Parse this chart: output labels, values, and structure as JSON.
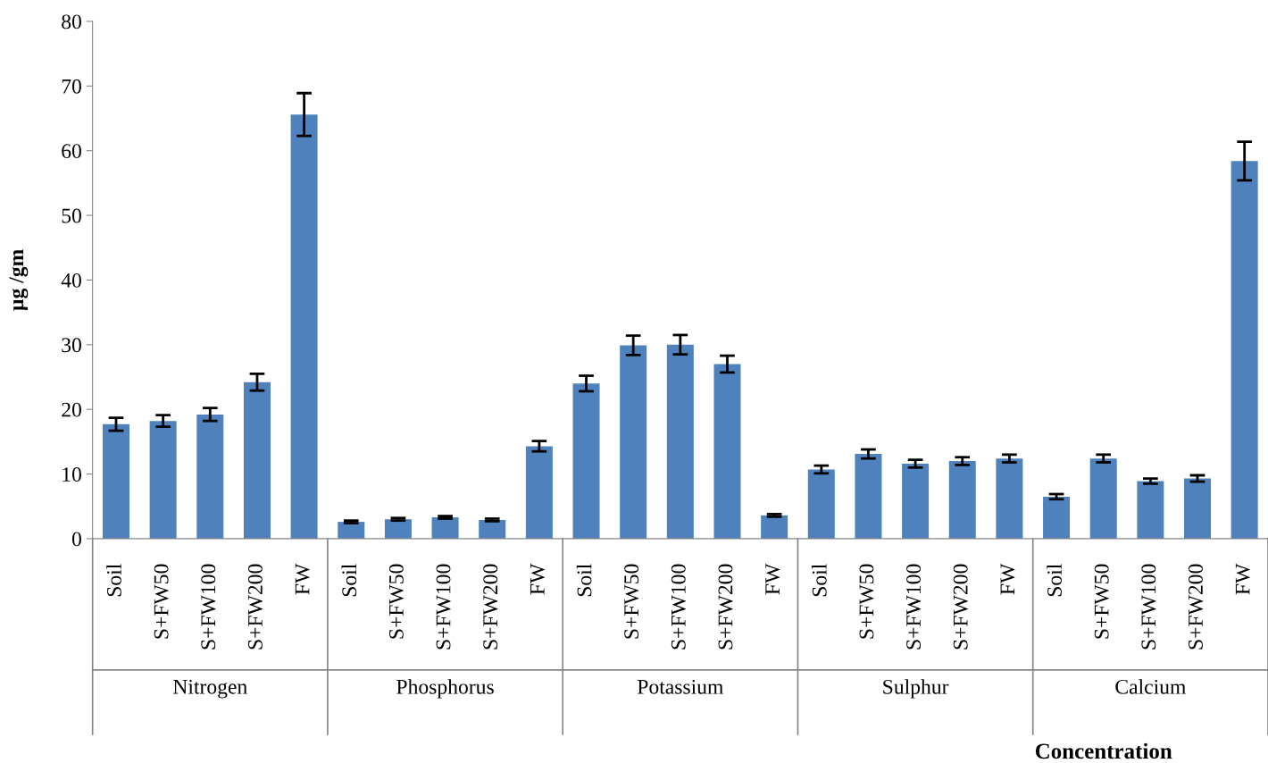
{
  "chart_data": {
    "type": "bar",
    "xlabel": "Concentration",
    "ylabel": "µg /gm",
    "categories": [
      "Soil",
      "S+FW50",
      "S+FW100",
      "S+FW200",
      "FW",
      "Soil",
      "S+FW50",
      "S+FW100",
      "S+FW200",
      "FW",
      "Soil",
      "S+FW50",
      "S+FW100",
      "S+FW200",
      "FW",
      "Soil",
      "S+FW50",
      "S+FW100",
      "S+FW200",
      "FW",
      "Soil",
      "S+FW50",
      "S+FW100",
      "S+FW200",
      "FW"
    ],
    "values": [
      17.7,
      18.2,
      19.2,
      24.2,
      65.6,
      2.6,
      3.0,
      3.3,
      2.9,
      14.3,
      24.0,
      29.9,
      30.0,
      27.0,
      3.6,
      10.7,
      13.1,
      11.6,
      12.0,
      12.4,
      6.5,
      12.4,
      8.9,
      9.3,
      58.4
    ],
    "errors": [
      1.0,
      0.9,
      1.0,
      1.3,
      3.3,
      0.2,
      0.2,
      0.2,
      0.2,
      0.8,
      1.2,
      1.5,
      1.5,
      1.3,
      0.2,
      0.6,
      0.7,
      0.6,
      0.6,
      0.6,
      0.4,
      0.6,
      0.4,
      0.5,
      3.0
    ],
    "color": "#4f81bd",
    "annotations": [
      "Nitrogen",
      "Phosphorus",
      "Potassium",
      "Sulphur",
      "Calcium"
    ],
    "ylim": [
      0,
      80
    ],
    "yticks": [
      0,
      10,
      20,
      30,
      40,
      50,
      60,
      70,
      80
    ],
    "grid": false
  }
}
